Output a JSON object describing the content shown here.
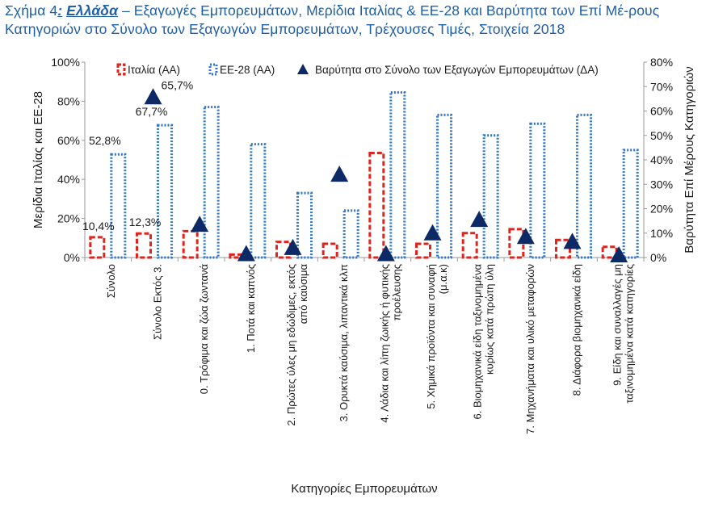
{
  "title": {
    "prefix": "Σχήμα 4",
    "colon": ":",
    "country": "Ελλάδα",
    "text": " – Εξαγωγές Εμπορευμάτων, Μερίδια Ιταλίας & ΕΕ-28 και Βαρύτητα των Επί Μέ-ρους Κατηγοριών στο Σύνολο των Εξαγωγών Εμπορευμάτων, Τρέχουσες Τιμές, Στοιχεία 2018"
  },
  "colors": {
    "italy": "#e0231c",
    "eu": "#2e75c8",
    "marker": "#0e2a66",
    "axis": "#9a9a9a"
  },
  "chart_data": {
    "type": "bar",
    "xlabel": "Κατηγορίες Εμπορευμάτων",
    "ylabel": "Μερίδια Ιταλίας και ΕΕ-28",
    "y2label": "Βαρύτητα Επί Μέρους Κατηγοριών",
    "ylim": [
      0,
      100
    ],
    "y2lim": [
      0,
      80
    ],
    "yticks": [
      "0%",
      "20%",
      "40%",
      "60%",
      "80%",
      "100%"
    ],
    "y2ticks": [
      "0%",
      "10%",
      "20%",
      "30%",
      "40%",
      "50%",
      "60%",
      "70%",
      "80%"
    ],
    "legend": [
      "Ιταλία (ΑΑ)",
      "ΕΕ-28 (ΑΑ)",
      "Βαρύτητα στο Σύνολο των Εξαγωγών Εμπορευμάτων (ΔΑ)"
    ],
    "categories": [
      [
        "Σύνολο"
      ],
      [
        "Σύνολο Εκτός 3."
      ],
      [
        "0. Τρόφιμα και ζώα ζωντανά"
      ],
      [
        "1. Ποτά και καπνός"
      ],
      [
        "2. Πρώτες ύλες μη εδώδιμες, εκτός",
        "από καύσιμα"
      ],
      [
        "3. Ορυκτά καύσιμα, λιπαντικά κλπ"
      ],
      [
        "4. Λάδια και λίπη ζωικής ή φυτικής",
        "προέλευσης"
      ],
      [
        "5. Χημικά προϊόντα και συναφή",
        "(μ.α.κ)"
      ],
      [
        "6. Βιομηχανικά είδη ταξινομημένα",
        "κυρίως κατά πρώτη ύλη"
      ],
      [
        "7. Μηχανήματα και υλικό μεταφορών"
      ],
      [
        "8. Διάφορα βιομηχανικά είδη"
      ],
      [
        "9. Είδη και συναλλαγές μη",
        "ταξινομημένα κατά κατηγορίες"
      ]
    ],
    "series": [
      {
        "name": "Ιταλία (ΑΑ)",
        "axis": "left",
        "values": [
          10.4,
          12.3,
          13.5,
          1.5,
          8.0,
          7.0,
          53.5,
          7.0,
          12.5,
          14.5,
          9.0,
          5.5
        ]
      },
      {
        "name": "ΕΕ-28 (ΑΑ)",
        "axis": "left",
        "values": [
          52.8,
          67.7,
          77.0,
          58.0,
          33.0,
          24.0,
          84.5,
          73.0,
          62.5,
          68.5,
          73.0,
          55.0
        ]
      },
      {
        "name": "Βαρύτητα στο Σύνολο των Εξαγωγών Εμπορευμάτων (ΔΑ)",
        "axis": "right",
        "values": [
          null,
          65.7,
          13.5,
          1.5,
          4.0,
          34.0,
          1.5,
          10.0,
          15.5,
          8.5,
          6.5,
          1.0
        ]
      }
    ],
    "data_labels": [
      {
        "series": 0,
        "index": 0,
        "text": "10,4%"
      },
      {
        "series": 0,
        "index": 1,
        "text": "12,3%"
      },
      {
        "series": 1,
        "index": 0,
        "text": "52,8%"
      },
      {
        "series": 1,
        "index": 1,
        "text": "67,7%"
      },
      {
        "series": 2,
        "index": 1,
        "text": "65,7%"
      }
    ]
  }
}
